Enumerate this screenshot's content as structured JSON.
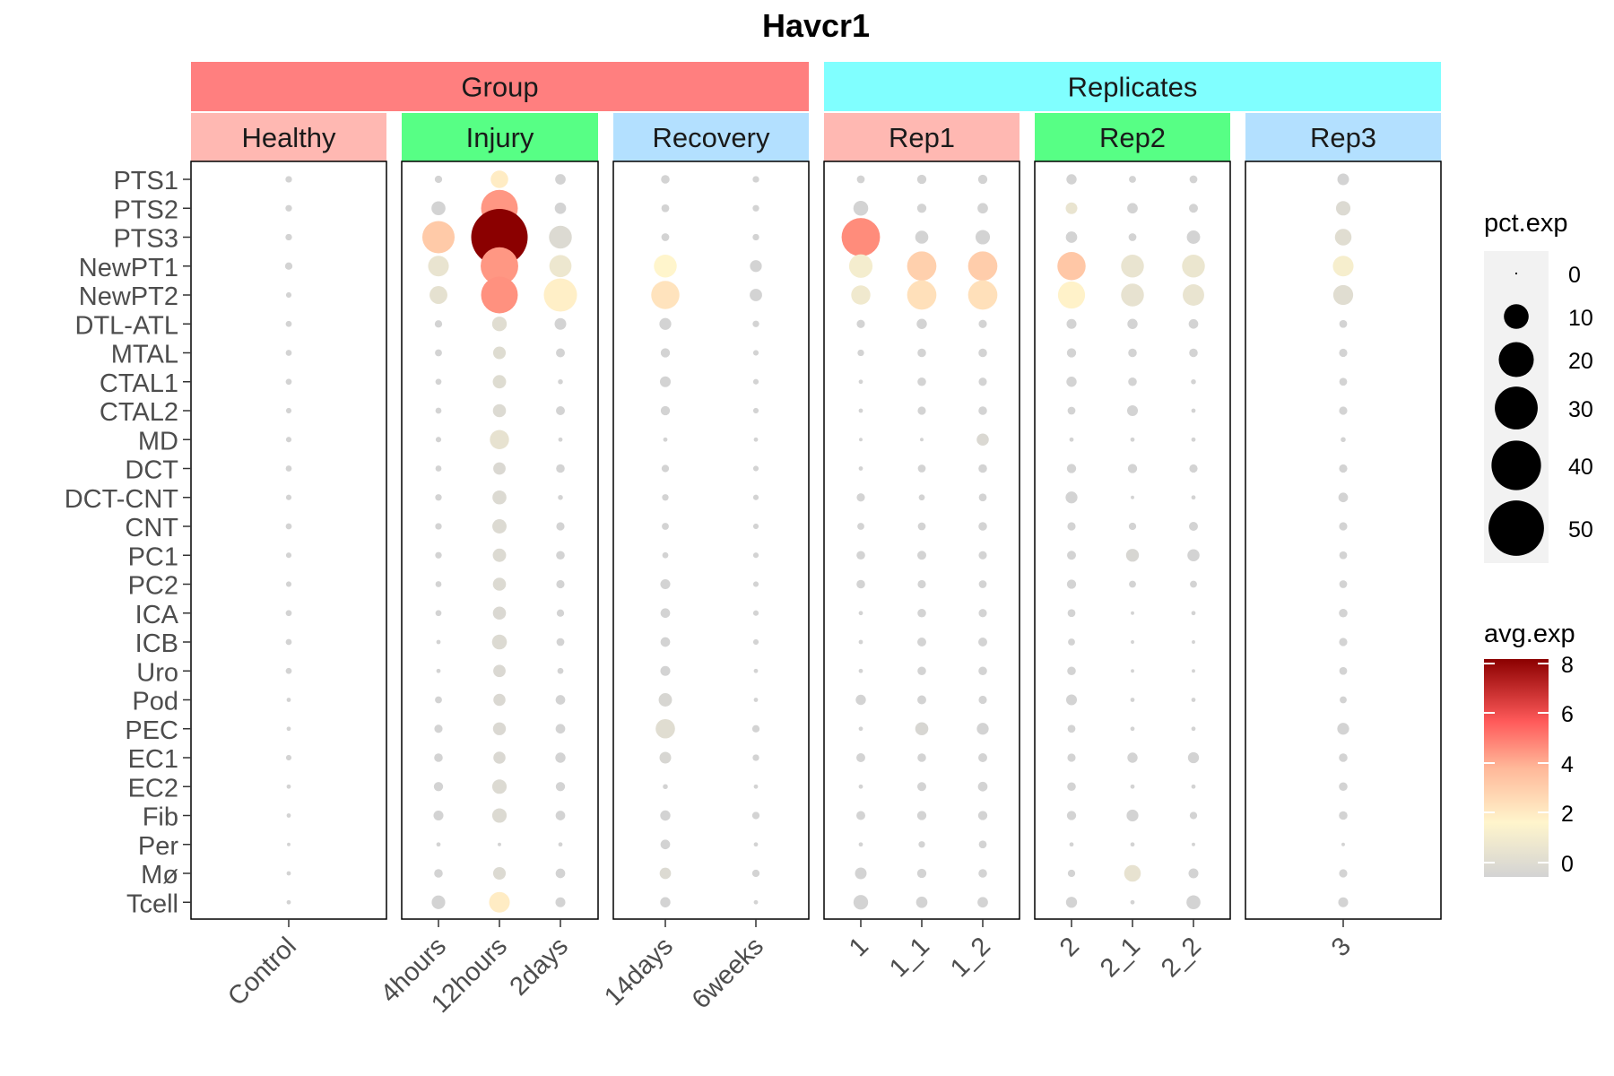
{
  "chart_data": {
    "type": "dot",
    "title": "Havcr1",
    "xlabel": "",
    "ylabel": "",
    "strips": [
      {
        "label": "Group",
        "color": "#FF7F7F",
        "panels": [
          {
            "label": "Healthy",
            "color": "#FFB8B2",
            "columns": [
              "Control"
            ]
          },
          {
            "label": "Injury",
            "color": "#57FF85",
            "columns": [
              "4hours",
              "12hours",
              "2days"
            ]
          },
          {
            "label": "Recovery",
            "color": "#B3E0FF",
            "columns": [
              "14days",
              "6weeks"
            ]
          }
        ]
      },
      {
        "label": "Replicates",
        "color": "#80FFFF",
        "panels": [
          {
            "label": "Rep1",
            "color": "#FFB8B2",
            "columns": [
              "1",
              "1_1",
              "1_2"
            ]
          },
          {
            "label": "Rep2",
            "color": "#57FF85",
            "columns": [
              "2",
              "2_1",
              "2_2"
            ]
          },
          {
            "label": "Rep3",
            "color": "#B3E0FF",
            "columns": [
              "3"
            ]
          }
        ]
      }
    ],
    "columns": [
      "Control",
      "4hours",
      "12hours",
      "2days",
      "14days",
      "6weeks",
      "1",
      "1_1",
      "1_2",
      "2",
      "2_1",
      "2_2",
      "3"
    ],
    "rows": [
      "PTS1",
      "PTS2",
      "PTS3",
      "NewPT1",
      "NewPT2",
      "DTL-ATL",
      "MTAL",
      "CTAL1",
      "CTAL2",
      "MD",
      "DCT",
      "DCT-CNT",
      "CNT",
      "PC1",
      "PC2",
      "ICA",
      "ICB",
      "Uro",
      "Pod",
      "PEC",
      "EC1",
      "EC2",
      "Fib",
      "Per",
      "Mø",
      "Tcell"
    ],
    "pct_exp": [
      [
        0.7,
        0.9,
        5,
        1.8,
        1.2,
        0.7,
        1,
        1.4,
        1.4,
        1.7,
        0.8,
        1,
        2.2
      ],
      [
        0.7,
        3.2,
        22,
        2.1,
        1,
        0.7,
        3.6,
        1.4,
        1.8,
        2.2,
        1.8,
        1.3,
        3.4
      ],
      [
        0.7,
        17,
        52,
        8.5,
        1,
        0.7,
        24,
        2.8,
        3.4,
        2.1,
        1,
        2.9,
        4.5
      ],
      [
        0.9,
        7,
        23,
        8,
        8.5,
        2.3,
        9,
        14,
        14,
        13,
        8.5,
        8.5,
        7
      ],
      [
        0.5,
        5.2,
        22,
        18,
        13,
        2.5,
        6,
        14,
        14,
        12,
        8.5,
        7.5,
        6.5
      ],
      [
        0.6,
        0.9,
        3.5,
        2.2,
        2.3,
        0.7,
        1.1,
        1.7,
        1.1,
        1.6,
        1.7,
        1.5,
        1
      ],
      [
        0.6,
        0.8,
        2.6,
        1.3,
        1.4,
        0.5,
        0.7,
        1.2,
        1.2,
        1.4,
        1.2,
        1.2,
        1.1
      ],
      [
        0.6,
        0.6,
        2.9,
        0.4,
        1.9,
        0.5,
        0.3,
        1.2,
        1.1,
        1.7,
        1.2,
        0.4,
        1
      ],
      [
        0.5,
        0.6,
        2.8,
        1.3,
        1.4,
        0.5,
        0.3,
        1.1,
        1.2,
        1,
        1.9,
        0.3,
        1.1
      ],
      [
        0.5,
        0.5,
        6,
        0.3,
        0.3,
        0.3,
        0.2,
        0.2,
        2.4,
        0.3,
        0.3,
        0.3,
        0.4
      ],
      [
        0.6,
        0.6,
        2.5,
        1.2,
        0.9,
        0.5,
        0.3,
        1,
        1.2,
        1.4,
        1.4,
        1.1,
        1.1
      ],
      [
        0.5,
        0.7,
        3.2,
        0.4,
        0.7,
        0.5,
        1.1,
        0.6,
        1,
        2.3,
        0.2,
        0.3,
        1.5
      ],
      [
        0.6,
        0.7,
        3.3,
        1.1,
        0.8,
        0.5,
        0.8,
        1,
        1.2,
        1.1,
        0.9,
        1.3,
        1.1
      ],
      [
        0.5,
        0.7,
        2.9,
        1.2,
        0.6,
        0.5,
        1.2,
        1.3,
        1.1,
        1.3,
        2.7,
        2.4,
        1
      ],
      [
        0.5,
        0.6,
        2.8,
        1.1,
        1.6,
        0.5,
        1.2,
        1.1,
        1,
        1.4,
        0.8,
        0.8,
        1
      ],
      [
        0.6,
        0.6,
        2.8,
        0.9,
        1.5,
        0.5,
        0.3,
        1.2,
        1.1,
        1,
        0.2,
        0.3,
        1.2
      ],
      [
        0.6,
        0.3,
        3.6,
        1,
        1.5,
        0.5,
        0.3,
        1.3,
        1.3,
        0.8,
        0.2,
        0.2,
        1.1
      ],
      [
        0.6,
        0.3,
        2.5,
        0.6,
        1.6,
        0.3,
        0.3,
        1.2,
        1.2,
        1.2,
        0.2,
        0.2,
        1
      ],
      [
        0.3,
        0.8,
        2.4,
        1.5,
        2.9,
        0.3,
        1.7,
        1.3,
        1.1,
        1.9,
        0.3,
        0.3,
        0.8
      ],
      [
        0.3,
        1.1,
        2.7,
        1.5,
        6.1,
        0.9,
        0.3,
        2.8,
        2.3,
        1,
        0.3,
        0.3,
        2.3
      ],
      [
        0.5,
        1.2,
        2.4,
        1.7,
        2.2,
        0.7,
        1.3,
        1.2,
        1.3,
        1.1,
        1.7,
        2,
        1.2
      ],
      [
        0.3,
        1.4,
        3.4,
        1.4,
        0.4,
        0.3,
        0.3,
        1.3,
        1.5,
        1.2,
        0.3,
        0.3,
        1.2
      ],
      [
        0.3,
        1.6,
        3.4,
        1.5,
        1.7,
        0.9,
        1.3,
        1.4,
        1.4,
        1.4,
        2.3,
        0.9,
        1.2
      ],
      [
        0.2,
        0.3,
        0.2,
        0.3,
        1.5,
        0.3,
        0.3,
        0.7,
        1,
        0.3,
        0.3,
        0.2,
        0.2
      ],
      [
        0.3,
        1.2,
        2.6,
        1.5,
        2.1,
        0.9,
        2.2,
        1.4,
        1.2,
        0.9,
        4.5,
        1.6,
        1.1
      ],
      [
        0.3,
        3,
        7,
        1.6,
        1.7,
        0.3,
        3.5,
        2.1,
        1.8,
        2,
        0.3,
        3.2,
        1.6
      ]
    ],
    "avg_exp": [
      [
        0,
        0,
        2.3,
        0,
        0,
        0,
        0,
        0,
        0,
        0,
        0,
        0,
        0
      ],
      [
        0,
        0,
        4.6,
        0,
        0,
        0,
        0,
        0,
        0,
        1,
        0,
        0,
        0.4
      ],
      [
        0,
        3.4,
        8,
        0.4,
        0,
        0,
        4.8,
        0,
        0,
        0,
        0,
        0,
        0.6
      ],
      [
        0,
        1,
        4.6,
        1.2,
        2,
        0,
        1.5,
        3.2,
        3.3,
        3.5,
        1,
        1.1,
        1.6
      ],
      [
        0,
        0.8,
        4.7,
        2.2,
        2.6,
        0,
        1.3,
        2.7,
        2.7,
        2.1,
        0.9,
        1,
        0.6
      ],
      [
        0,
        0,
        0.6,
        0,
        0,
        0,
        0,
        0,
        0,
        0,
        0,
        0,
        0
      ],
      [
        0,
        0,
        0.5,
        0,
        0,
        0,
        0,
        0,
        0,
        0,
        0,
        0,
        0
      ],
      [
        0,
        0,
        0.5,
        0,
        0,
        0,
        0,
        0,
        0,
        0,
        0,
        0,
        0
      ],
      [
        0,
        0,
        0.4,
        0,
        0,
        0,
        0,
        0,
        0,
        0,
        0,
        0,
        0
      ],
      [
        0,
        0,
        0.9,
        0,
        0,
        0,
        0,
        0,
        0.3,
        0,
        0,
        0,
        0
      ],
      [
        0,
        0,
        0.3,
        0,
        0,
        0,
        0,
        0,
        0,
        0,
        0,
        0,
        0
      ],
      [
        0,
        0,
        0.4,
        0,
        0,
        0,
        0,
        0,
        0,
        0,
        0,
        0,
        0
      ],
      [
        0,
        0,
        0.4,
        0,
        0,
        0,
        0,
        0,
        0,
        0,
        0,
        0,
        0
      ],
      [
        0,
        0,
        0.4,
        0,
        0,
        0,
        0,
        0,
        0,
        0,
        0.2,
        0,
        0
      ],
      [
        0,
        0,
        0.4,
        0,
        0,
        0,
        0,
        0,
        0,
        0,
        0,
        0,
        0
      ],
      [
        0,
        0,
        0.3,
        0,
        0,
        0,
        0,
        0,
        0,
        0,
        0,
        0,
        0
      ],
      [
        0,
        0,
        0.4,
        0,
        0,
        0,
        0,
        0,
        0,
        0,
        0,
        0,
        0
      ],
      [
        0,
        0,
        0.3,
        0,
        0,
        0,
        0,
        0,
        0,
        0,
        0,
        0,
        0
      ],
      [
        0,
        0,
        0.3,
        0,
        0.2,
        0,
        0,
        0,
        0,
        0,
        0,
        0,
        0
      ],
      [
        0,
        0,
        0.3,
        0,
        0.6,
        0,
        0,
        0.2,
        0,
        0,
        0,
        0,
        0
      ],
      [
        0,
        0,
        0.3,
        0,
        0.2,
        0,
        0,
        0,
        0,
        0,
        0,
        0,
        0
      ],
      [
        0,
        0,
        0.4,
        0,
        0,
        0,
        0,
        0,
        0,
        0,
        0,
        0,
        0
      ],
      [
        0,
        0,
        0.4,
        0,
        0,
        0,
        0,
        0,
        0,
        0,
        0,
        0,
        0
      ],
      [
        0,
        0,
        0,
        0,
        0,
        0,
        0,
        0,
        0,
        0,
        0,
        0,
        0
      ],
      [
        0,
        0,
        0.4,
        0,
        0.4,
        0,
        0,
        0,
        0,
        0,
        0.9,
        0,
        0
      ],
      [
        0,
        0,
        2.3,
        0,
        0,
        0,
        0,
        0,
        0,
        0,
        0,
        0,
        0
      ]
    ],
    "legend": {
      "size_title": "pct.exp",
      "size_breaks": [
        0,
        10,
        20,
        30,
        40,
        50
      ],
      "color_title": "avg.exp",
      "color_breaks": [
        0,
        2,
        4,
        6,
        8
      ],
      "color_stops": [
        {
          "value": 0,
          "color": "#D3D3D3"
        },
        {
          "value": 2,
          "color": "#FFF5CC"
        },
        {
          "value": 4,
          "color": "#FFB899"
        },
        {
          "value": 5.7,
          "color": "#FF5A5A"
        },
        {
          "value": 8,
          "color": "#8B0000"
        }
      ]
    },
    "grid": false
  }
}
